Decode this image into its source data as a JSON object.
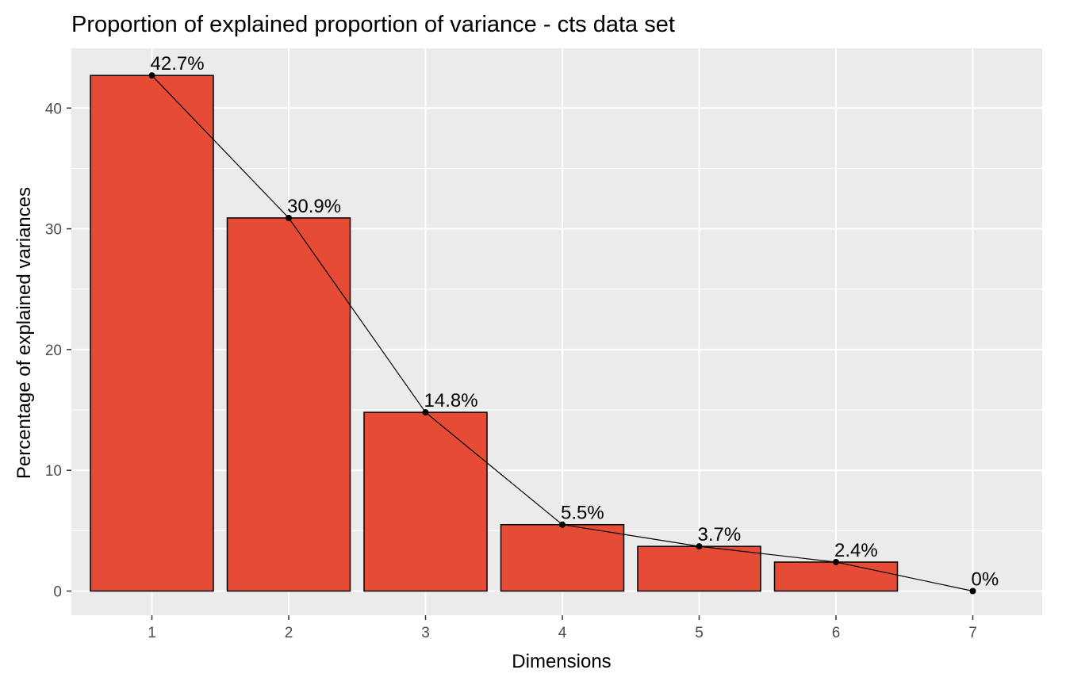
{
  "chart_data": {
    "type": "bar",
    "title": "Proportion of explained proportion of variance - cts data set",
    "xlabel": "Dimensions",
    "ylabel": "Percentage of explained variances",
    "categories": [
      "1",
      "2",
      "3",
      "4",
      "5",
      "6",
      "7"
    ],
    "values": [
      42.7,
      30.9,
      14.8,
      5.5,
      3.7,
      2.4,
      0
    ],
    "data_labels": [
      "42.7%",
      "30.9%",
      "14.8%",
      "5.5%",
      "3.7%",
      "2.4%",
      "0%"
    ],
    "ylim": [
      0,
      45
    ],
    "yticks": [
      0,
      10,
      20,
      30,
      40
    ],
    "grid": true,
    "legend": "none",
    "overlay_line": true,
    "colors": {
      "bar_fill": "#e64b35",
      "bar_outline": "#000000",
      "line": "#000000",
      "panel_background": "#ebebeb",
      "grid": "#ffffff"
    }
  }
}
